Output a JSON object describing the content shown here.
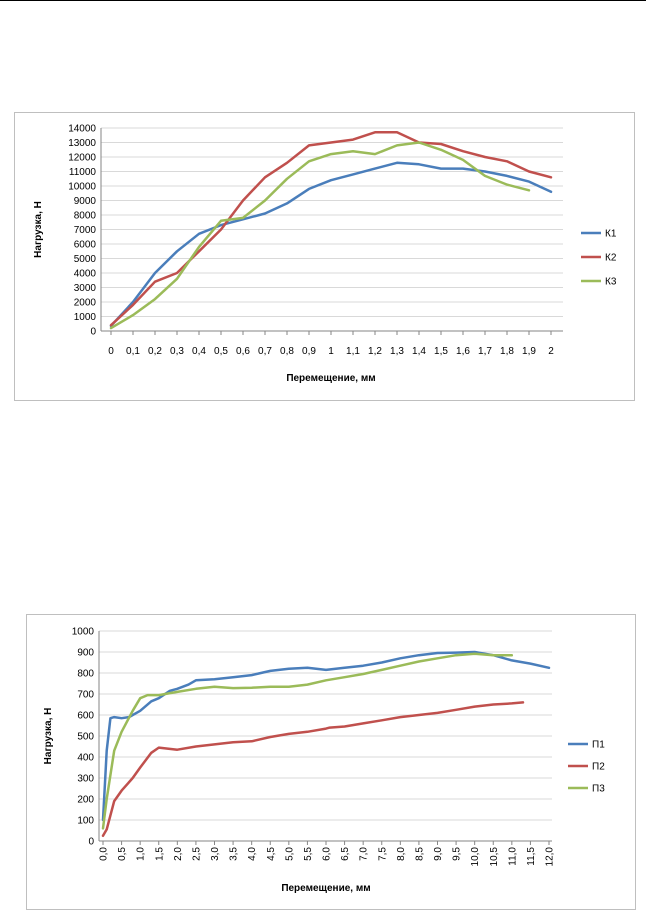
{
  "chart_data": [
    {
      "type": "line",
      "xlabel": "Перемещение, мм",
      "ylabel": "Нагрузка, Н",
      "ylim": [
        0,
        14000
      ],
      "y_step": 1000,
      "categories": [
        "0",
        "0,1",
        "0,2",
        "0,3",
        "0,4",
        "0,5",
        "0,6",
        "0,7",
        "0,8",
        "0,9",
        "1",
        "1,1",
        "1,2",
        "1,3",
        "1,4",
        "1,5",
        "1,6",
        "1,7",
        "1,8",
        "1,9",
        "2"
      ],
      "grid": "horizontal",
      "legend_position": "right",
      "series": [
        {
          "name": "К1",
          "color": "#4a7ebb",
          "values": [
            350,
            2000,
            4000,
            5500,
            6700,
            7300,
            7700,
            8100,
            8800,
            9800,
            10400,
            10800,
            11200,
            11600,
            11500,
            11200,
            11200,
            11000,
            10700,
            10300,
            9600
          ]
        },
        {
          "name": "К2",
          "color": "#c0504d",
          "values": [
            400,
            1800,
            3400,
            4000,
            5500,
            7000,
            9000,
            10600,
            11600,
            12800,
            13000,
            13200,
            13700,
            13700,
            13000,
            12900,
            12400,
            12000,
            11700,
            11000,
            10600
          ]
        },
        {
          "name": "К3",
          "color": "#9bbb59",
          "values": [
            200,
            1100,
            2200,
            3600,
            5800,
            7600,
            7800,
            9000,
            10500,
            11700,
            12200,
            12400,
            12200,
            12800,
            13000,
            12500,
            11800,
            10700,
            10100,
            9700,
            null
          ]
        }
      ]
    },
    {
      "type": "line",
      "xlabel": "Перемещение, мм",
      "ylabel": "Нагрузка, Н",
      "ylim": [
        0,
        1000
      ],
      "y_step": 100,
      "xlim": [
        0,
        12
      ],
      "categories": [
        "0,0",
        "0,5",
        "1,0",
        "1,5",
        "2,0",
        "2,5",
        "3,0",
        "3,5",
        "4,0",
        "4,5",
        "5,0",
        "5,5",
        "6,0",
        "6,5",
        "7,0",
        "7,5",
        "8,0",
        "8,5",
        "9,0",
        "9,5",
        "10,0",
        "10,5",
        "11,0",
        "11,5",
        "12,0"
      ],
      "grid": "horizontal",
      "legend_position": "right",
      "series": [
        {
          "name": "П1",
          "color": "#4a7ebb",
          "points": [
            [
              0,
              100
            ],
            [
              0.1,
              430
            ],
            [
              0.2,
              585
            ],
            [
              0.3,
              590
            ],
            [
              0.5,
              585
            ],
            [
              0.7,
              590
            ],
            [
              1.0,
              620
            ],
            [
              1.3,
              665
            ],
            [
              1.5,
              680
            ],
            [
              1.8,
              715
            ],
            [
              2.0,
              725
            ],
            [
              2.3,
              745
            ],
            [
              2.5,
              765
            ],
            [
              3.0,
              770
            ],
            [
              3.5,
              780
            ],
            [
              4.0,
              790
            ],
            [
              4.5,
              810
            ],
            [
              5.0,
              820
            ],
            [
              5.5,
              825
            ],
            [
              6.0,
              815
            ],
            [
              6.5,
              825
            ],
            [
              7.0,
              835
            ],
            [
              7.5,
              850
            ],
            [
              8.0,
              870
            ],
            [
              8.5,
              885
            ],
            [
              9.0,
              895
            ],
            [
              9.5,
              897
            ],
            [
              10.0,
              900
            ],
            [
              10.5,
              885
            ],
            [
              11.0,
              860
            ],
            [
              11.5,
              845
            ],
            [
              12.0,
              825
            ]
          ]
        },
        {
          "name": "П2",
          "color": "#c0504d",
          "points": [
            [
              0,
              25
            ],
            [
              0.1,
              55
            ],
            [
              0.3,
              190
            ],
            [
              0.5,
              240
            ],
            [
              0.8,
              300
            ],
            [
              1.0,
              350
            ],
            [
              1.3,
              420
            ],
            [
              1.5,
              445
            ],
            [
              2.0,
              435
            ],
            [
              2.5,
              450
            ],
            [
              3.0,
              460
            ],
            [
              3.5,
              470
            ],
            [
              4.0,
              475
            ],
            [
              4.5,
              495
            ],
            [
              5.0,
              510
            ],
            [
              5.5,
              520
            ],
            [
              6.0,
              535
            ],
            [
              6.1,
              540
            ],
            [
              6.5,
              545
            ],
            [
              7.0,
              560
            ],
            [
              7.5,
              575
            ],
            [
              8.0,
              590
            ],
            [
              8.5,
              600
            ],
            [
              9.0,
              610
            ],
            [
              9.5,
              625
            ],
            [
              10.0,
              640
            ],
            [
              10.5,
              650
            ],
            [
              11.0,
              655
            ],
            [
              11.3,
              660
            ]
          ]
        },
        {
          "name": "П3",
          "color": "#9bbb59",
          "points": [
            [
              0,
              60
            ],
            [
              0.1,
              200
            ],
            [
              0.3,
              430
            ],
            [
              0.5,
              520
            ],
            [
              0.8,
              620
            ],
            [
              1.0,
              680
            ],
            [
              1.2,
              695
            ],
            [
              1.5,
              695
            ],
            [
              2.0,
              710
            ],
            [
              2.5,
              725
            ],
            [
              3.0,
              735
            ],
            [
              3.5,
              728
            ],
            [
              4.0,
              730
            ],
            [
              4.5,
              735
            ],
            [
              5.0,
              735
            ],
            [
              5.5,
              745
            ],
            [
              6.0,
              765
            ],
            [
              6.5,
              780
            ],
            [
              7.0,
              795
            ],
            [
              7.5,
              815
            ],
            [
              8.0,
              835
            ],
            [
              8.5,
              855
            ],
            [
              9.0,
              870
            ],
            [
              9.5,
              885
            ],
            [
              10.0,
              892
            ],
            [
              10.5,
              885
            ],
            [
              11.0,
              885
            ]
          ]
        }
      ]
    }
  ]
}
